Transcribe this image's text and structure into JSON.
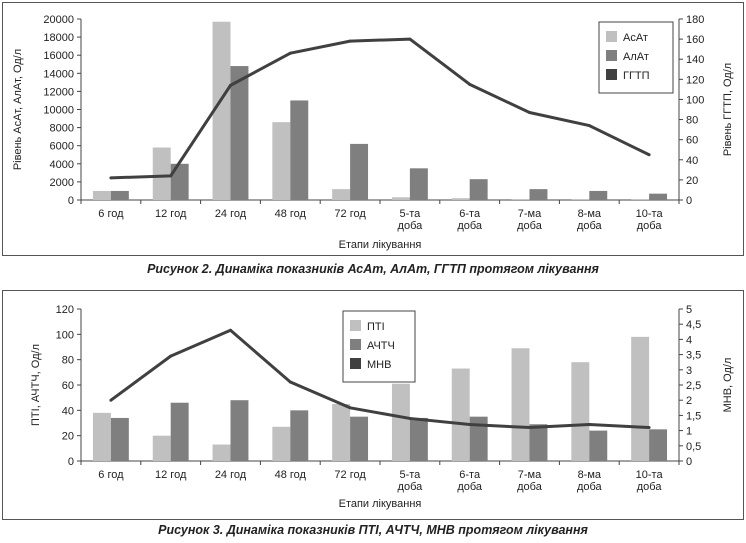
{
  "figures": [
    {
      "caption": "Рисунок 2. Динаміка показників АсАт, АлАт, ГГТП протягом лікування"
    },
    {
      "caption": "Рисунок 3. Динаміка показників ПТІ, АЧТЧ, МНВ протягом лікування"
    }
  ],
  "chart_data": [
    {
      "type": "bar",
      "categories": [
        [
          "6 год"
        ],
        [
          "12 год"
        ],
        [
          "24 год"
        ],
        [
          "48 год"
        ],
        [
          "72 год"
        ],
        [
          "5-та",
          "доба"
        ],
        [
          "6-та",
          "доба"
        ],
        [
          "7-ма",
          "доба"
        ],
        [
          "8-ма",
          "доба"
        ],
        [
          "10-та",
          "доба"
        ]
      ],
      "xlabel": "Етапи лікування",
      "ylabel": "Рівень АсАт, АлАт, Од/л",
      "y2label": "Рівень ГГТП, Од/л",
      "ylim": [
        0,
        20000
      ],
      "yticks": [
        0,
        2000,
        4000,
        6000,
        8000,
        10000,
        12000,
        14000,
        16000,
        18000,
        20000
      ],
      "y2lim": [
        0,
        180
      ],
      "y2ticks": [
        0,
        20,
        40,
        60,
        80,
        100,
        120,
        140,
        160,
        180
      ],
      "legend_position": "top-right",
      "series": [
        {
          "name": "АсАт",
          "kind": "bar",
          "axis": "left",
          "color": "#c0c0c0",
          "values": [
            1000,
            5800,
            19700,
            8600,
            1200,
            300,
            200,
            100,
            100,
            100
          ]
        },
        {
          "name": "АлАт",
          "kind": "bar",
          "axis": "left",
          "color": "#7f7f7f",
          "values": [
            1000,
            4000,
            14800,
            11000,
            6200,
            3500,
            2300,
            1200,
            1000,
            700
          ]
        },
        {
          "name": "ГГТП",
          "kind": "line",
          "axis": "right",
          "color": "#404040",
          "values": [
            22,
            24,
            114,
            146,
            158,
            160,
            115,
            87,
            74,
            45
          ]
        }
      ]
    },
    {
      "type": "bar",
      "categories": [
        [
          "6 год"
        ],
        [
          "12 год"
        ],
        [
          "24 год"
        ],
        [
          "48 год"
        ],
        [
          "72 год"
        ],
        [
          "5-та",
          "доба"
        ],
        [
          "6-та",
          "доба"
        ],
        [
          "7-ма",
          "доба"
        ],
        [
          "8-ма",
          "доба"
        ],
        [
          "10-та",
          "доба"
        ]
      ],
      "xlabel": "Етапи лікування",
      "ylabel": "ПТІ, АЧТЧ, Од/л",
      "y2label": "МНВ, Од/л",
      "ylim": [
        0,
        120
      ],
      "yticks": [
        0,
        20,
        40,
        60,
        80,
        100,
        120
      ],
      "y2lim": [
        0,
        5
      ],
      "y2ticks": [
        "0",
        "0,5",
        "1",
        "1,5",
        "2",
        "2,5",
        "3",
        "3,5",
        "4",
        "4,5",
        "5"
      ],
      "legend_position": "top-center",
      "series": [
        {
          "name": "ПТІ",
          "kind": "bar",
          "axis": "left",
          "color": "#c0c0c0",
          "values": [
            38,
            20,
            13,
            27,
            45,
            61,
            73,
            89,
            78,
            98
          ]
        },
        {
          "name": "АЧТЧ",
          "kind": "bar",
          "axis": "left",
          "color": "#7f7f7f",
          "values": [
            34,
            46,
            48,
            40,
            35,
            34,
            35,
            29,
            24,
            25
          ]
        },
        {
          "name": "МНВ",
          "kind": "line",
          "axis": "right",
          "color": "#404040",
          "values": [
            2.0,
            3.45,
            4.3,
            2.6,
            1.75,
            1.4,
            1.2,
            1.1,
            1.2,
            1.1
          ]
        }
      ]
    }
  ]
}
